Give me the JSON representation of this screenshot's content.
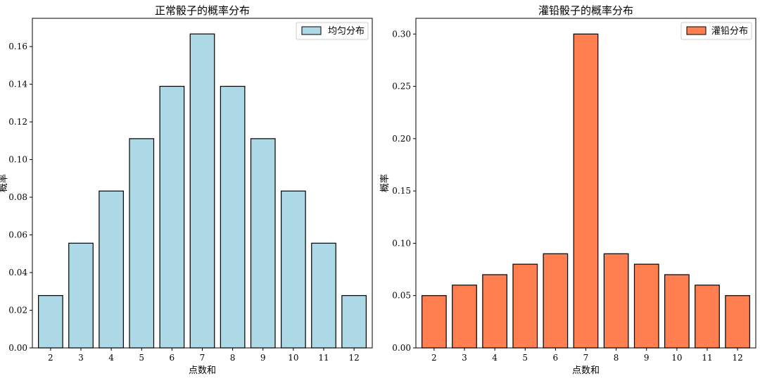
{
  "chart_data": [
    {
      "type": "bar",
      "title": "正常骰子的概率分布",
      "xlabel": "点数和",
      "ylabel": "概率",
      "categories": [
        "2",
        "3",
        "4",
        "5",
        "6",
        "7",
        "8",
        "9",
        "10",
        "11",
        "12"
      ],
      "series": [
        {
          "name": "均匀分布",
          "values": [
            0.0278,
            0.0556,
            0.0833,
            0.1111,
            0.1389,
            0.1667,
            0.1389,
            0.1111,
            0.0833,
            0.0556,
            0.0278
          ]
        }
      ],
      "ylim": [
        0,
        0.175
      ],
      "yticks": [
        "0.00",
        "0.02",
        "0.04",
        "0.06",
        "0.08",
        "0.10",
        "0.12",
        "0.14",
        "0.16"
      ],
      "bar_color": "#add8e6",
      "edge_color": "#000000",
      "legend_position": "top-right",
      "grid": false
    },
    {
      "type": "bar",
      "title": "灌铅骰子的概率分布",
      "xlabel": "点数和",
      "ylabel": "概率",
      "categories": [
        "2",
        "3",
        "4",
        "5",
        "6",
        "7",
        "8",
        "9",
        "10",
        "11",
        "12"
      ],
      "series": [
        {
          "name": "灌铅分布",
          "values": [
            0.05,
            0.06,
            0.07,
            0.08,
            0.09,
            0.3,
            0.09,
            0.08,
            0.07,
            0.06,
            0.05
          ]
        }
      ],
      "ylim": [
        0,
        0.315
      ],
      "yticks": [
        "0.00",
        "0.05",
        "0.10",
        "0.15",
        "0.20",
        "0.25",
        "0.30"
      ],
      "bar_color": "#ff7f50",
      "edge_color": "#000000",
      "legend_position": "top-right",
      "grid": false
    }
  ]
}
